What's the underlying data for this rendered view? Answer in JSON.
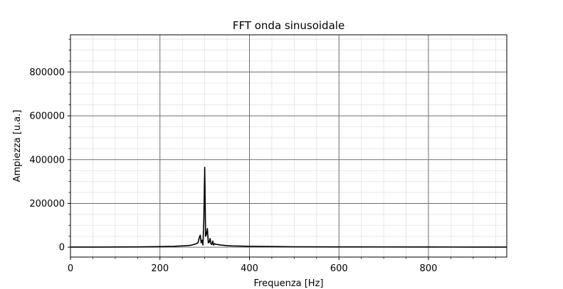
{
  "chart_data": {
    "type": "line",
    "title": "FFT onda sinusoidale",
    "xlabel": "Frequenza [Hz]",
    "ylabel": "Ampiezza [u.a.]",
    "xlim": [
      0,
      975
    ],
    "ylim": [
      -45000,
      970000
    ],
    "xticks": [
      0,
      200,
      400,
      600,
      800
    ],
    "yticks": [
      0,
      200000,
      400000,
      600000,
      800000
    ],
    "xtick_labels": [
      "0",
      "200",
      "400",
      "600",
      "800"
    ],
    "ytick_labels": [
      "0",
      "200000",
      "400000",
      "600000",
      "800000"
    ],
    "x_minor_step": 50,
    "y_minor_step": 50000,
    "grid": true,
    "line_color": "#000000",
    "series": [
      {
        "x": [
          0,
          50,
          100,
          150,
          200,
          230,
          250,
          260,
          265,
          270,
          275,
          280,
          285,
          288,
          290,
          292,
          294,
          296,
          298,
          300,
          302,
          304,
          306,
          308,
          310,
          312,
          314,
          316,
          318,
          320,
          322,
          325,
          330,
          335,
          340,
          345,
          350,
          360,
          380,
          400,
          450,
          500,
          600,
          700,
          800,
          900,
          975
        ],
        "y": [
          500,
          600,
          900,
          1500,
          2500,
          4000,
          6000,
          7000,
          8000,
          9000,
          12000,
          15000,
          20000,
          45000,
          55000,
          20000,
          32000,
          10000,
          120000,
          365000,
          50000,
          60000,
          85000,
          20000,
          22000,
          40000,
          15000,
          12000,
          28000,
          10000,
          16000,
          13000,
          12000,
          10000,
          9000,
          8000,
          7000,
          6000,
          5000,
          4000,
          3000,
          2000,
          1500,
          1200,
          900,
          700,
          500
        ]
      }
    ]
  }
}
